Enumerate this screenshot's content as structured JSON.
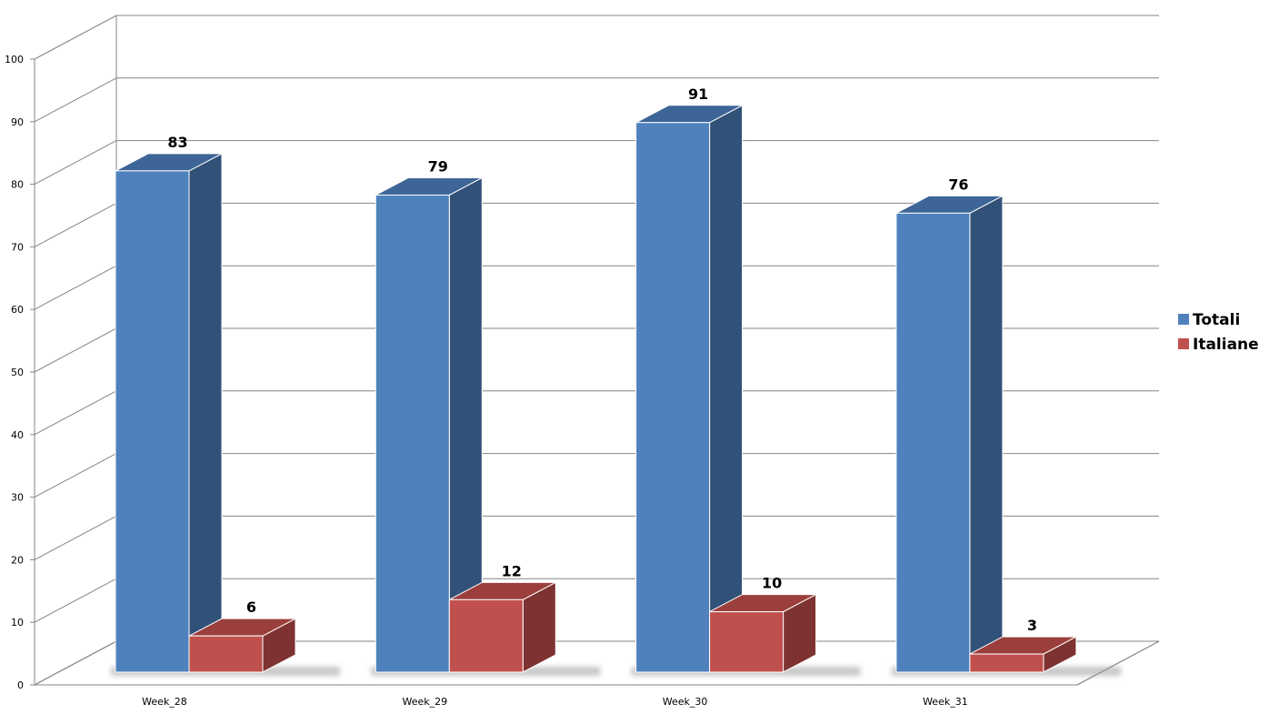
{
  "chart_data": {
    "type": "bar",
    "categories": [
      "Week_28",
      "Week_29",
      "Week_30",
      "Week_31"
    ],
    "series": [
      {
        "name": "Totali",
        "values": [
          83,
          79,
          91,
          76
        ],
        "color": "#4F81BD",
        "side_color": "#325178",
        "top_color": "#3D6597"
      },
      {
        "name": "Italiane",
        "values": [
          6,
          12,
          10,
          3
        ],
        "color": "#C0504D",
        "side_color": "#7E3231",
        "top_color": "#9B3F3C"
      }
    ],
    "ylim": [
      0,
      100
    ],
    "yticks": [
      0,
      10,
      20,
      30,
      40,
      50,
      60,
      70,
      80,
      90,
      100
    ],
    "grid": true,
    "legend_position": "right",
    "three_d": true
  }
}
